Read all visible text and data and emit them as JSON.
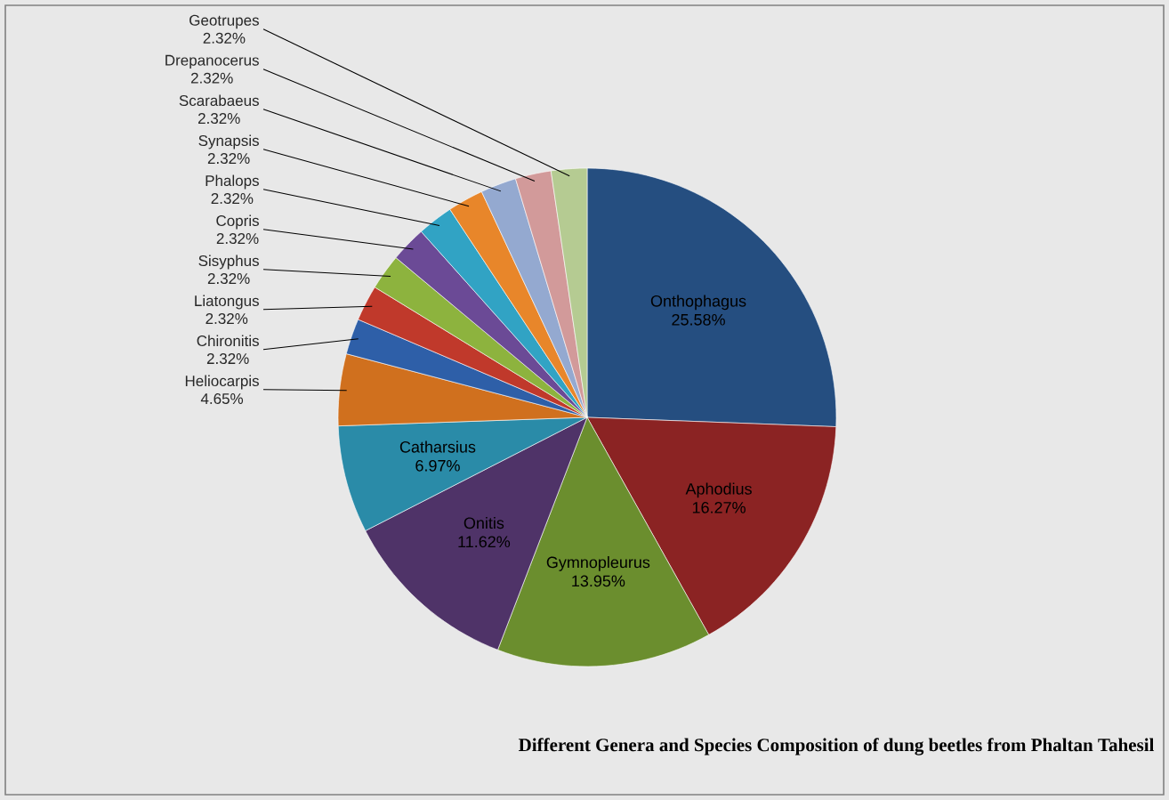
{
  "chart_data": {
    "type": "pie",
    "title": "Different Genera and Species Composition of dung beetles from Phaltan Tahesil",
    "categories": [
      "Onthophagus",
      "Aphodius",
      "Gymnopleurus",
      "Onitis",
      "Catharsius",
      "Heliocarpis",
      "Chironitis",
      "Liatongus",
      "Sisyphus",
      "Copris",
      "Phalops",
      "Synapsis",
      "Scarabaeus",
      "Drepanocerus",
      "Geotrupes"
    ],
    "values": [
      25.58,
      16.27,
      13.95,
      11.62,
      6.97,
      4.65,
      2.32,
      2.32,
      2.32,
      2.32,
      2.32,
      2.32,
      2.32,
      2.32,
      2.32
    ],
    "value_labels": [
      "25.58%",
      "16.27%",
      "13.95%",
      "11.62%",
      "6.97%",
      "4.65%",
      "2.32%",
      "2.32%",
      "2.32%",
      "2.32%",
      "2.32%",
      "2.32%",
      "2.32%",
      "2.32%",
      "2.32%"
    ],
    "colors": [
      "#254E80",
      "#8B2323",
      "#6B8E2E",
      "#4F3368",
      "#2A8BA8",
      "#D0701E",
      "#2E5FA8",
      "#C0392B",
      "#8DB33E",
      "#6B4A96",
      "#31A3C4",
      "#E8862A",
      "#94A9D0",
      "#D29A9A",
      "#B5CB92"
    ]
  }
}
